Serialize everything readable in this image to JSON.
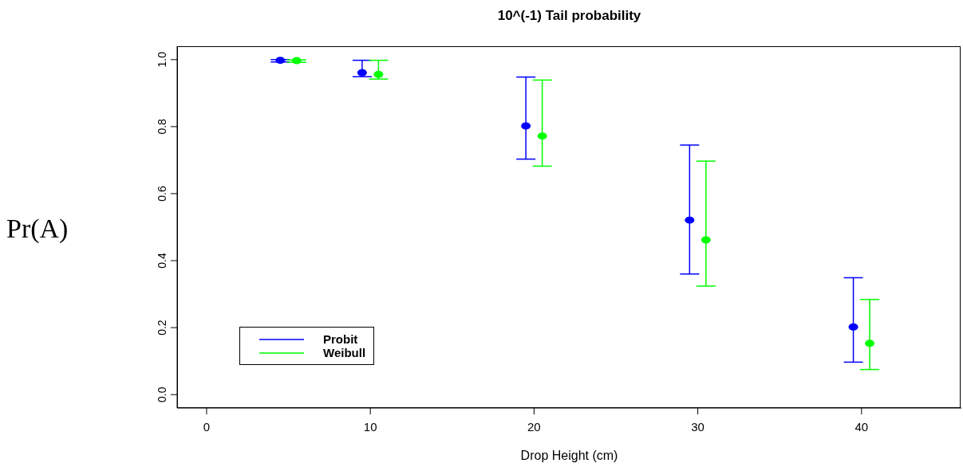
{
  "chart_data": {
    "type": "scatter",
    "title": "10^(-1) Tail probability",
    "xlabel": "Drop Height (cm)",
    "ylabel": "Pr(A)",
    "series": [
      {
        "name": "Probit",
        "color": "#0000ff",
        "x": [
          4.5,
          9.5,
          19.5,
          29.5,
          39.5
        ],
        "values": [
          0.998,
          0.961,
          0.802,
          0.521,
          0.202
        ],
        "errors": [
          [
            0.993,
            1.0
          ],
          [
            0.949,
            0.998
          ],
          [
            0.703,
            0.948
          ],
          [
            0.36,
            0.745
          ],
          [
            0.097,
            0.349
          ]
        ]
      },
      {
        "name": "Weibull",
        "color": "#00ff00",
        "x": [
          5.5,
          10.5,
          20.5,
          30.5,
          40.5
        ],
        "values": [
          0.997,
          0.956,
          0.772,
          0.462,
          0.153
        ],
        "errors": [
          [
            0.992,
            0.999
          ],
          [
            0.942,
            0.998
          ],
          [
            0.682,
            0.939
          ],
          [
            0.324,
            0.697
          ],
          [
            0.075,
            0.284
          ]
        ]
      }
    ],
    "xlim": [
      -1.8,
      46.1
    ],
    "xticks": [
      0,
      10,
      20,
      30,
      40
    ],
    "ylim": [
      -0.04,
      1.04
    ],
    "yticks": [
      {
        "value": 0,
        "label": "0.0"
      },
      0.2,
      0.4,
      0.6,
      0.8,
      {
        "value": 1,
        "label": "1.0"
      }
    ],
    "marker": "circle",
    "legend": "bottom left",
    "grid": false
  }
}
